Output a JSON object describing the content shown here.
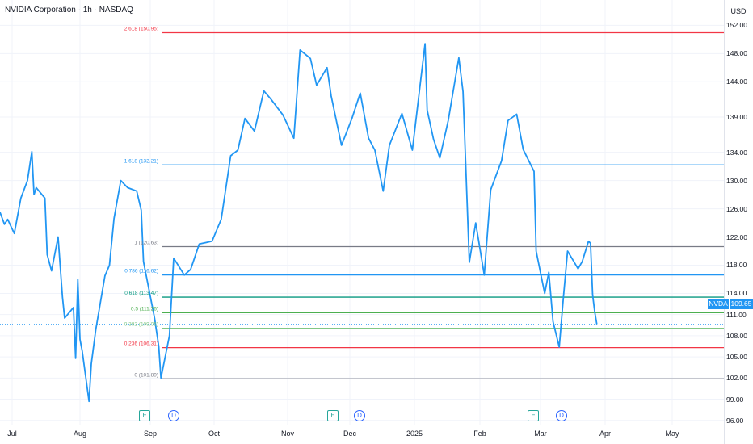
{
  "header": {
    "title": "NVIDIA Corporation · 1h · NASDAQ",
    "currency": "USD"
  },
  "last_price": {
    "symbol": "NVDA",
    "value": "109.65"
  },
  "events": [
    {
      "label": "E",
      "kind": "earnings",
      "month_pos": "Sep"
    },
    {
      "label": "D",
      "kind": "dividend",
      "month_pos": "Sep"
    },
    {
      "label": "E",
      "kind": "earnings",
      "month_pos": "Nov"
    },
    {
      "label": "D",
      "kind": "dividend",
      "month_pos": "Dec"
    },
    {
      "label": "E",
      "kind": "earnings",
      "month_pos": "Feb"
    },
    {
      "label": "D",
      "kind": "dividend",
      "month_pos": "Mar"
    }
  ],
  "chart_data": {
    "type": "line",
    "title": "NVIDIA Corporation · 1h · NASDAQ",
    "xlabel": "",
    "ylabel": "",
    "ylim": [
      95.4,
      153.3
    ],
    "y_ticks": [
      "152.00",
      "148.00",
      "144.00",
      "139.00",
      "134.00",
      "130.00",
      "126.00",
      "122.00",
      "118.00",
      "114.00",
      "111.00",
      "108.00",
      "105.00",
      "102.00",
      "99.00",
      "96.00"
    ],
    "x_ticks": [
      "Jul",
      "Aug",
      "Sep",
      "Oct",
      "Nov",
      "Dec",
      "2025",
      "Feb",
      "Mar",
      "Apr",
      "May"
    ],
    "grid": true,
    "legend": "none",
    "line_color": "#2196f3",
    "series": [
      {
        "x": [
          "2024-06-20",
          "2024-06-24",
          "2024-06-27",
          "2024-07-02",
          "2024-07-05",
          "2024-07-08",
          "2024-07-10",
          "2024-07-11",
          "2024-07-12",
          "2024-07-16",
          "2024-07-17",
          "2024-07-19",
          "2024-07-22",
          "2024-07-24",
          "2024-07-25",
          "2024-07-29",
          "2024-07-30",
          "2024-07-31",
          "2024-08-01",
          "2024-08-02",
          "2024-08-05",
          "2024-08-06",
          "2024-08-08",
          "2024-08-12",
          "2024-08-14",
          "2024-08-16",
          "2024-08-19",
          "2024-08-22",
          "2024-08-26",
          "2024-08-28",
          "2024-08-29",
          "2024-09-03",
          "2024-09-05",
          "2024-09-06",
          "2024-09-10",
          "2024-09-12",
          "2024-09-17",
          "2024-09-20",
          "2024-09-24",
          "2024-09-30",
          "2024-10-04",
          "2024-10-08",
          "2024-10-11",
          "2024-10-14",
          "2024-10-18",
          "2024-10-22",
          "2024-10-25",
          "2024-10-30",
          "2024-11-04",
          "2024-11-07",
          "2024-11-12",
          "2024-11-15",
          "2024-11-20",
          "2024-11-22",
          "2024-11-27",
          "2024-12-02",
          "2024-12-06",
          "2024-12-10",
          "2024-12-13",
          "2024-12-17",
          "2024-12-20",
          "2024-12-26",
          "2024-12-31",
          "2025-01-06",
          "2025-01-07",
          "2025-01-10",
          "2025-01-13",
          "2025-01-17",
          "2025-01-22",
          "2025-01-24",
          "2025-01-27",
          "2025-01-30",
          "2025-02-03",
          "2025-02-06",
          "2025-02-11",
          "2025-02-14",
          "2025-02-18",
          "2025-02-21",
          "2025-02-26",
          "2025-02-27",
          "2025-03-03",
          "2025-03-05",
          "2025-03-07",
          "2025-03-10",
          "2025-03-12",
          "2025-03-14",
          "2025-03-17",
          "2025-03-19",
          "2025-03-21",
          "2025-03-24",
          "2025-03-25",
          "2025-03-26",
          "2025-03-27",
          "2025-03-28"
        ],
        "values": [
          125.5,
          123.8,
          124.5,
          122.5,
          127.5,
          130.0,
          134.1,
          128.0,
          129.0,
          127.5,
          119.5,
          117.2,
          122.0,
          113.5,
          110.5,
          112.0,
          104.8,
          116.0,
          107.5,
          105.8,
          98.7,
          104.0,
          108.9,
          116.5,
          118.0,
          124.6,
          130.0,
          129.0,
          128.5,
          125.8,
          118.5,
          110.5,
          106.5,
          102.0,
          108.0,
          119.0,
          116.6,
          117.4,
          121.0,
          121.4,
          124.5,
          133.5,
          134.3,
          138.8,
          137.0,
          142.7,
          141.5,
          139.3,
          136.0,
          148.5,
          147.3,
          143.5,
          146.0,
          142.0,
          135.0,
          138.8,
          142.4,
          136.0,
          134.3,
          128.5,
          135.0,
          139.5,
          134.3,
          149.4,
          140.0,
          135.9,
          133.2,
          138.5,
          147.4,
          142.6,
          118.4,
          124.0,
          116.6,
          128.7,
          132.8,
          138.5,
          139.4,
          134.4,
          131.3,
          120.0,
          114.0,
          117.0,
          110.0,
          106.4,
          113.5,
          120.0,
          118.5,
          117.5,
          118.5,
          121.4,
          121.1,
          113.8,
          111.4,
          109.65
        ]
      }
    ],
    "fib_levels": [
      {
        "label": "2.618 (150.95)",
        "value": 150.95,
        "color": "#f23645"
      },
      {
        "label": "1.618 (132.21)",
        "value": 132.21,
        "color": "#2196f3"
      },
      {
        "label": "1 (120.63)",
        "value": 120.63,
        "color": "#787b86"
      },
      {
        "label": "0.786 (116.62)",
        "value": 116.62,
        "color": "#2196f3"
      },
      {
        "label": "0.618 (113.47)",
        "value": 113.47,
        "color": "#089981"
      },
      {
        "label": "0.5 (111.26)",
        "value": 111.26,
        "color": "#4caf50"
      },
      {
        "label": "0.382 (109.05)",
        "value": 109.05,
        "color": "#81c784"
      },
      {
        "label": "0.236 (106.31)",
        "value": 106.31,
        "color": "#f23645"
      },
      {
        "label": "0 (101.89)",
        "value": 101.89,
        "color": "#787b86"
      }
    ]
  }
}
